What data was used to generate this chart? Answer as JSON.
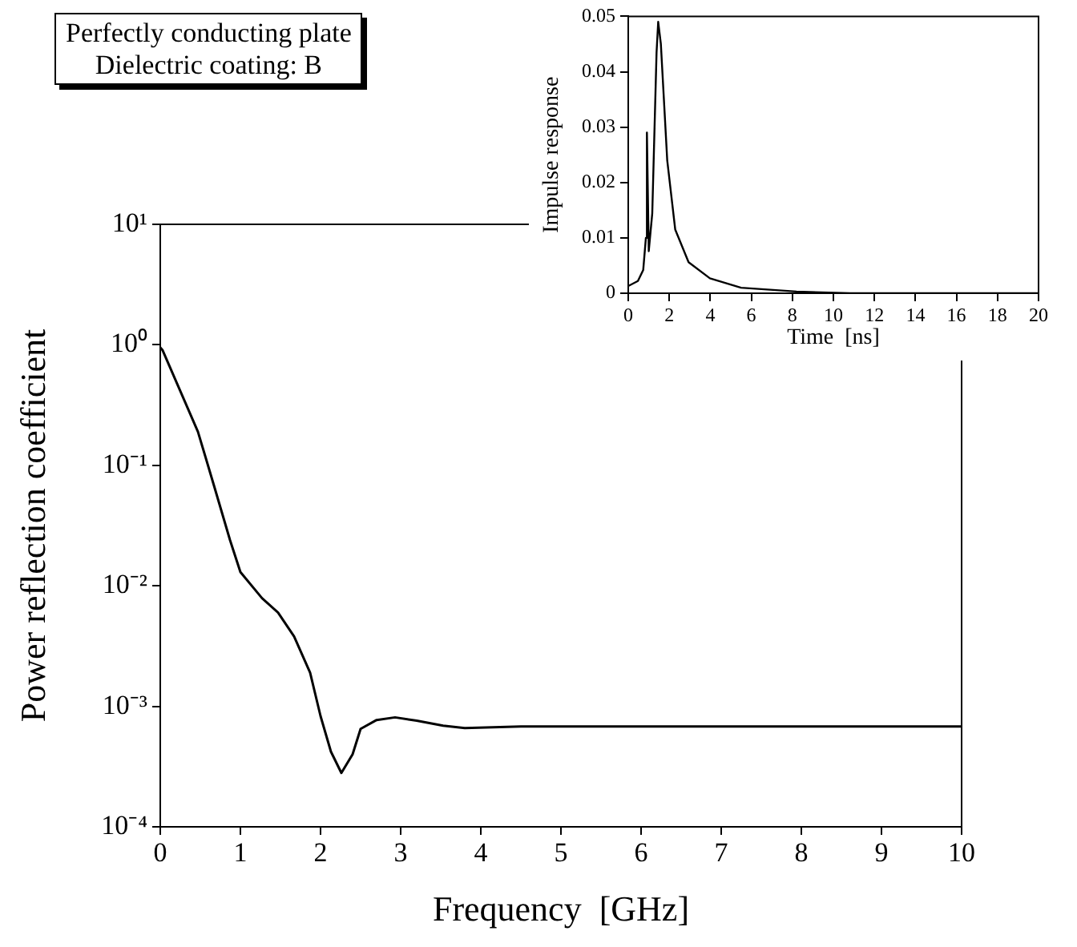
{
  "chart_data": [
    {
      "type": "line",
      "xlabel": "Frequency  [GHz]",
      "ylabel": "Power reflection coefficient",
      "annotations": [
        "Perfectly conducting plate",
        "Dielectric coating: B"
      ],
      "log": "y",
      "grid": false,
      "legend": false,
      "marker": "none",
      "line_style": "solid",
      "xlim": [
        0,
        10
      ],
      "xticks": [
        0,
        1,
        2,
        3,
        4,
        5,
        6,
        7,
        8,
        9,
        10
      ],
      "ylim": [
        0.0001,
        10
      ],
      "yticks": [
        {
          "value": 0.0001,
          "label": "10⁻⁴"
        },
        {
          "value": 0.001,
          "label": "10⁻³"
        },
        {
          "value": 0.01,
          "label": "10⁻²"
        },
        {
          "value": 0.1,
          "label": "10⁻¹"
        },
        {
          "value": 1,
          "label": "10⁰"
        },
        {
          "value": 10,
          "label": "10¹"
        }
      ],
      "series": [
        {
          "color": "#000000",
          "x": [
            0,
            0.03,
            0.47,
            0.67,
            0.87,
            1.0,
            1.27,
            1.47,
            1.67,
            1.87,
            2.0,
            2.13,
            2.26,
            2.4,
            2.5,
            2.7,
            2.93,
            3.2,
            3.53,
            3.8,
            4.5,
            6,
            8,
            10
          ],
          "values": [
            0.95,
            0.9,
            0.19,
            0.068,
            0.024,
            0.013,
            0.0079,
            0.006,
            0.0038,
            0.0019,
            0.00083,
            0.00042,
            0.00028,
            0.0004,
            0.00065,
            0.00077,
            0.00081,
            0.00076,
            0.00069,
            0.00066,
            0.00068,
            0.00068,
            0.00068,
            0.00068
          ]
        }
      ]
    },
    {
      "type": "line",
      "xlabel": "Time  [ns]",
      "ylabel": "Impulse response",
      "grid": false,
      "legend": false,
      "marker": "none",
      "line_style": "solid",
      "xlim": [
        0,
        20
      ],
      "xticks": [
        0,
        2,
        4,
        6,
        8,
        10,
        12,
        14,
        16,
        18,
        20
      ],
      "ylim": [
        0,
        0.05
      ],
      "yticks": [
        0,
        0.01,
        0.02,
        0.03,
        0.04,
        0.05
      ],
      "series": [
        {
          "color": "#000000",
          "x": [
            0,
            0.47,
            0.73,
            0.86,
            0.91,
            1.0,
            1.17,
            1.38,
            1.46,
            1.59,
            1.9,
            2.29,
            2.94,
            3.98,
            5.5,
            8.2,
            10.8,
            14,
            20
          ],
          "values": [
            0.0013,
            0.0022,
            0.0042,
            0.01,
            0.029,
            0.0076,
            0.0144,
            0.0435,
            0.049,
            0.045,
            0.024,
            0.0115,
            0.0056,
            0.0027,
            0.001,
            0.0003,
            0,
            0,
            0
          ]
        }
      ]
    }
  ]
}
